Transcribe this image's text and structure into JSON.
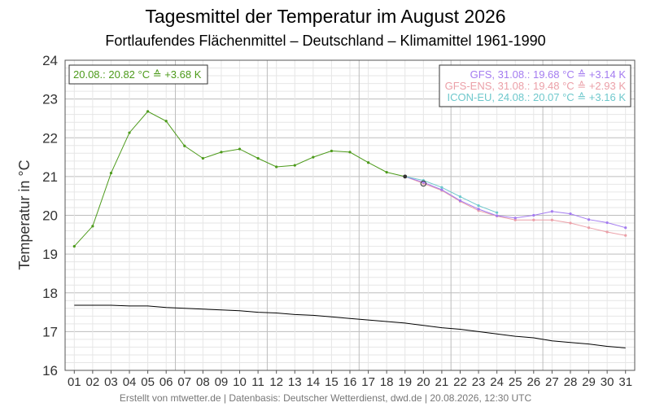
{
  "chart_data": {
    "type": "line",
    "title": "Tagesmittel der Temperatur im August 2026",
    "subtitle": "Fortlaufendes Flächenmittel – Deutschland – Klimamittel 1961-1990",
    "ylabel": "Temperatur in °C",
    "footer": "Erstellt von mtwetter.de | Datenbasis: Deutscher Wetterdienst, dwd.de | 20.08.2026, 12:30 UTC",
    "ylim": [
      16,
      24
    ],
    "xlim": [
      0.5,
      31.5
    ],
    "grid": true,
    "categories": [
      "01",
      "02",
      "03",
      "04",
      "05",
      "06",
      "07",
      "08",
      "09",
      "10",
      "11",
      "12",
      "13",
      "14",
      "15",
      "16",
      "17",
      "18",
      "19",
      "20",
      "21",
      "22",
      "23",
      "24",
      "25",
      "26",
      "27",
      "28",
      "29",
      "30",
      "31"
    ],
    "yticks": [
      "16",
      "17",
      "18",
      "19",
      "20",
      "21",
      "22",
      "23",
      "24"
    ],
    "legend_left": "20.08.: 20.82 °C ≙ +3.68 K",
    "legend_right": [
      "GFS, 31.08.: 19.68 °C ≙ +3.14 K",
      "GFS-ENS, 31.08.: 19.48 °C ≙ +2.93 K",
      "ICON-EU, 24.08.: 20.07 °C ≙ +3.16 K"
    ],
    "colors": {
      "observed": "#4c9a1a",
      "gfs": "#a47cf0",
      "gfs_ens": "#eba0a8",
      "icon_eu": "#6ec8cc",
      "climate": "#000000"
    },
    "series": [
      {
        "key": "observed",
        "x": [
          1,
          2,
          3,
          4,
          5,
          6,
          7,
          8,
          9,
          10,
          11,
          12,
          13,
          14,
          15,
          16,
          17,
          18,
          19
        ],
        "values": [
          19.2,
          19.72,
          21.09,
          22.13,
          22.68,
          22.43,
          21.79,
          21.47,
          21.63,
          21.71,
          21.47,
          21.25,
          21.29,
          21.5,
          21.66,
          21.63,
          21.36,
          21.11,
          21.0
        ]
      },
      {
        "key": "gfs",
        "x": [
          19,
          20,
          21,
          22,
          23,
          24,
          25,
          26,
          27,
          28,
          29,
          30,
          31
        ],
        "values": [
          21.0,
          20.85,
          20.66,
          20.38,
          20.16,
          19.99,
          19.93,
          20.0,
          20.1,
          20.04,
          19.89,
          19.81,
          19.68
        ]
      },
      {
        "key": "gfs_ens",
        "x": [
          19,
          20,
          21,
          22,
          23,
          24,
          25,
          26,
          27,
          28,
          29,
          30,
          31
        ],
        "values": [
          21.0,
          20.82,
          20.64,
          20.36,
          20.12,
          19.98,
          19.88,
          19.88,
          19.88,
          19.8,
          19.68,
          19.57,
          19.48
        ]
      },
      {
        "key": "icon_eu",
        "x": [
          19,
          20,
          21,
          22,
          23,
          24
        ],
        "values": [
          21.0,
          20.9,
          20.72,
          20.48,
          20.25,
          20.07
        ]
      },
      {
        "key": "climate",
        "x": [
          1,
          2,
          3,
          4,
          5,
          6,
          7,
          8,
          9,
          10,
          11,
          12,
          13,
          14,
          15,
          16,
          17,
          18,
          19,
          20,
          21,
          22,
          23,
          24,
          25,
          26,
          27,
          28,
          29,
          30,
          31
        ],
        "values": [
          17.68,
          17.68,
          17.68,
          17.66,
          17.66,
          17.62,
          17.6,
          17.58,
          17.56,
          17.54,
          17.5,
          17.48,
          17.44,
          17.42,
          17.38,
          17.34,
          17.3,
          17.26,
          17.22,
          17.16,
          17.1,
          17.06,
          17.0,
          16.94,
          16.88,
          16.84,
          16.76,
          16.72,
          16.68,
          16.62,
          16.58
        ]
      }
    ],
    "markers": [
      {
        "key": "observed_last",
        "x": 19,
        "y": 21.0
      },
      {
        "key": "current_mean",
        "x": 20,
        "y": 20.82
      }
    ]
  }
}
